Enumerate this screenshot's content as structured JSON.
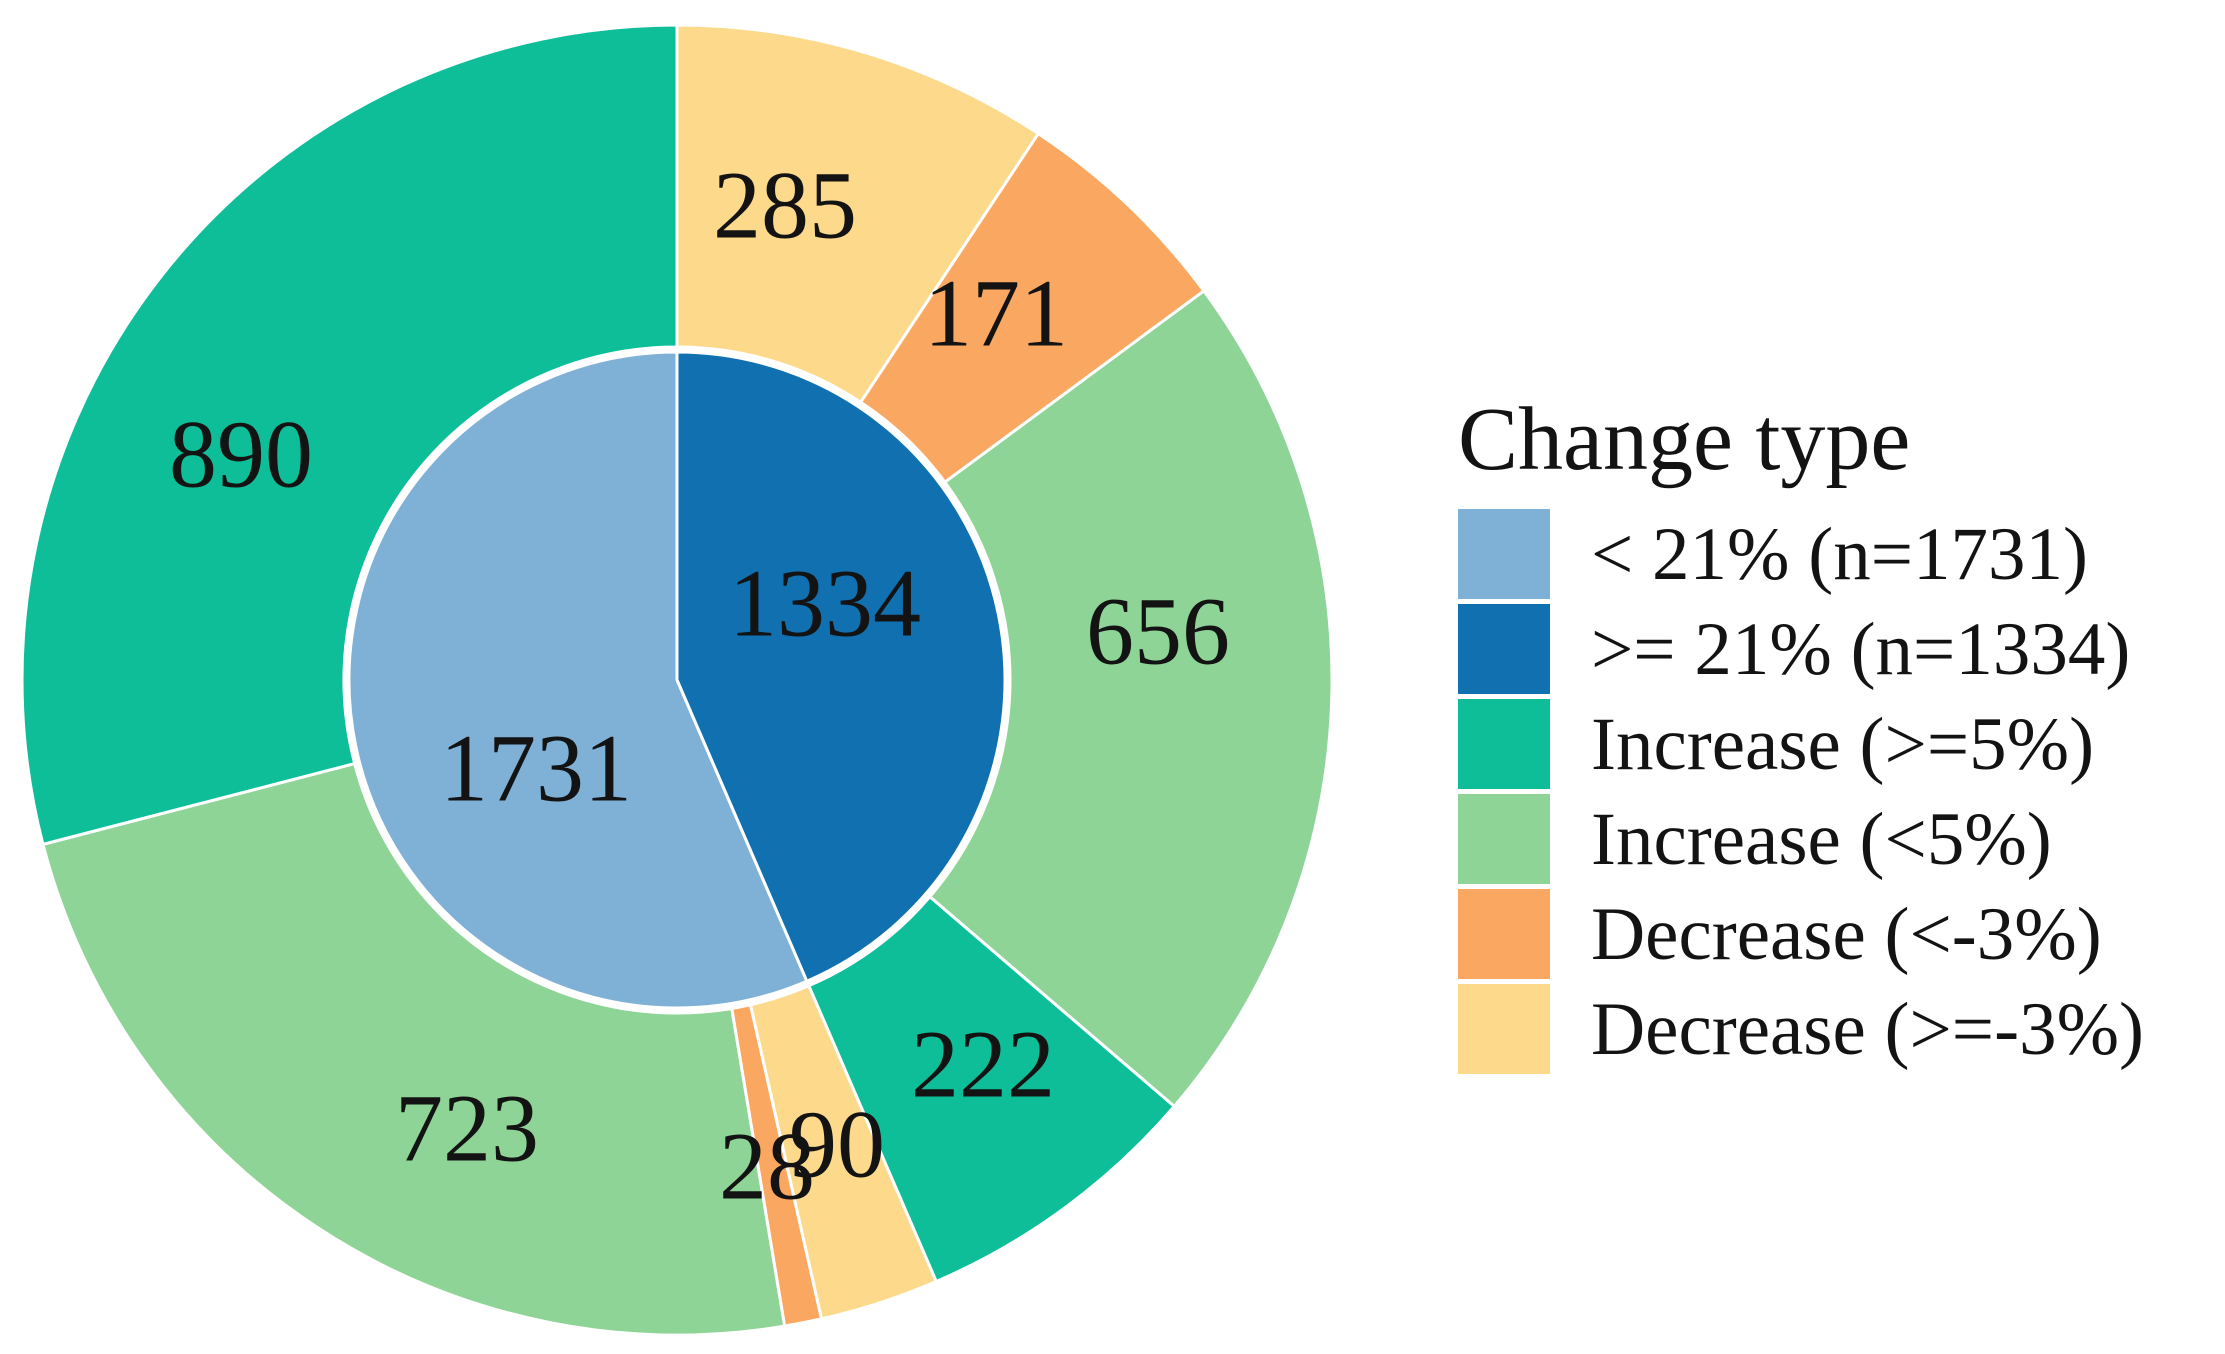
{
  "figure": {
    "background": "#ffffff",
    "text_color": "#131313"
  },
  "chart_data": {
    "type": "pie",
    "subtype": "nested-donut",
    "direction": "clockwise",
    "start_angle_deg": 0,
    "total": 3065,
    "legend": {
      "title": "Change type",
      "position": "right",
      "entries": [
        {
          "label": "< 21% (n=1731)",
          "color": "#7FB1D6"
        },
        {
          "label": ">= 21% (n=1334)",
          "color": "#1070B0"
        },
        {
          "label": "Increase (>=5%)",
          "color": "#0DBE99"
        },
        {
          "label": "Increase (<5%)",
          "color": "#8DD496"
        },
        {
          "label": "Decrease (<-3%)",
          "color": "#FAA761"
        },
        {
          "label": "Decrease (>=-3%)",
          "color": "#FCD98B"
        }
      ]
    },
    "inner_ring": {
      "slices": [
        {
          "label": "1334",
          "value": 1334,
          "legend": ">= 21% (n=1334)",
          "color": "#1070B0"
        },
        {
          "label": "1731",
          "value": 1731,
          "legend": "< 21% (n=1731)",
          "color": "#7FB1D6"
        }
      ]
    },
    "outer_ring": {
      "slices": [
        {
          "label": "285",
          "value": 285,
          "legend": "Decrease (>=-3%)",
          "group": ">= 21% (n=1334)",
          "color": "#FCD98B"
        },
        {
          "label": "171",
          "value": 171,
          "legend": "Decrease (<-3%)",
          "group": ">= 21% (n=1334)",
          "color": "#FAA761"
        },
        {
          "label": "656",
          "value": 656,
          "legend": "Increase (<5%)",
          "group": ">= 21% (n=1334)",
          "color": "#8DD496"
        },
        {
          "label": "222",
          "value": 222,
          "legend": "Increase (>=5%)",
          "group": ">= 21% (n=1334)",
          "color": "#0DBE99"
        },
        {
          "label": "90",
          "value": 90,
          "legend": "Decrease (>=-3%)",
          "group": "< 21% (n=1731)",
          "color": "#FCD98B"
        },
        {
          "label": "28",
          "value": 28,
          "legend": "Decrease (<-3%)",
          "group": "< 21% (n=1731)",
          "color": "#FAA761"
        },
        {
          "label": "723",
          "value": 723,
          "legend": "Increase (<5%)",
          "group": "< 21% (n=1731)",
          "color": "#8DD496"
        },
        {
          "label": "890",
          "value": 890,
          "legend": "Increase (>=5%)",
          "group": "< 21% (n=1731)",
          "color": "#0DBE99"
        }
      ]
    }
  }
}
